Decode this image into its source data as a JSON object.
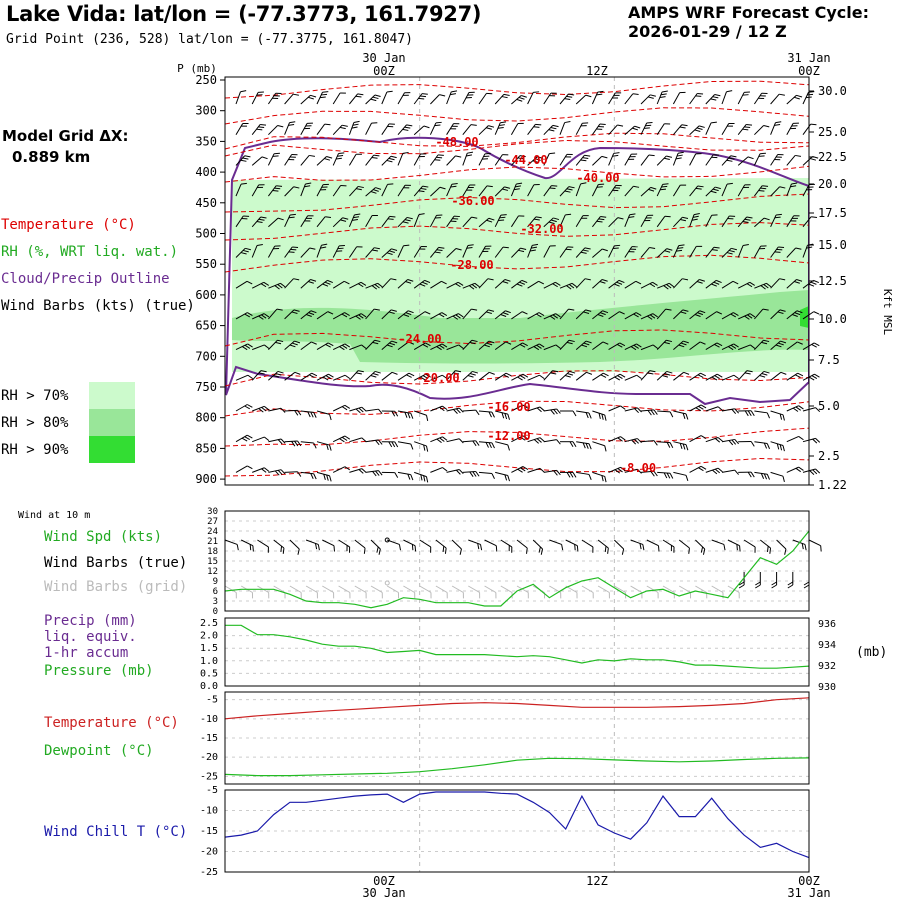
{
  "header": {
    "title": "Lake Vida:  lat/lon = (-77.3773, 161.7927)",
    "grid_point": "Grid Point (236, 528) lat/lon = (-77.3775, 161.8047)",
    "cycle_label": "AMPS WRF Forecast Cycle:",
    "cycle_value": "2026-01-29 / 12  Z"
  },
  "model_grid": {
    "line1": "Model Grid ΔX:",
    "line2": "0.889 km"
  },
  "legend": {
    "temperature": "Temperature (°C)",
    "rh": "RH (%, WRT liq. wat.)",
    "cloud": "Cloud/Precip Outline",
    "wind": "Wind Barbs (kts) (true)",
    "rh70": "RH > 70%",
    "rh80": "RH > 80%",
    "rh90": "RH > 90%"
  },
  "colors": {
    "rh70": "#ccfacc",
    "rh80": "#99e699",
    "rh90": "#33dd33",
    "temperature": "#dd0000",
    "cloud": "#6a2c91",
    "green_line": "#22bb22",
    "red_line": "#cc2222",
    "blue_line": "#1a1aaa",
    "grid": "#bbbbbb"
  },
  "time_axis": {
    "top_dates": [
      "30 Jan",
      "31 Jan"
    ],
    "labels": [
      "00Z",
      "12Z",
      "00Z"
    ],
    "bottom_dates": [
      "30 Jan",
      "31 Jan"
    ]
  },
  "upper_panel": {
    "p_label": "P (mb)",
    "pressure_ticks": [
      "250",
      "300",
      "350",
      "400",
      "450",
      "500",
      "550",
      "600",
      "650",
      "700",
      "750",
      "800",
      "850",
      "900"
    ],
    "height_ticks": [
      "30.0",
      "25.0",
      "22.5",
      "20.0",
      "17.5",
      "15.0",
      "12.5",
      "10.0",
      "7.5",
      "5.0",
      "2.5",
      "1.22"
    ],
    "height_label": "Kft MSL",
    "isotherm_labels": [
      "-48.00",
      "-44.00",
      "-40.00",
      "-36.00",
      "-32.00",
      "-28.00",
      "-24.00",
      "-20.00",
      "-16.00",
      "-12.00",
      "-8.00"
    ]
  },
  "panel2": {
    "corner": "Wind at 10 m",
    "labels": [
      "Wind Spd (kts)",
      "Wind Barbs (true)",
      "Wind Barbs (grid)"
    ],
    "y_ticks": [
      "30",
      "27",
      "24",
      "21",
      "18",
      "15",
      "12",
      "9",
      "6",
      "3",
      "0"
    ]
  },
  "panel3": {
    "labels": [
      "Precip (mm)",
      "liq. equiv.",
      "1-hr accum",
      "Pressure (mb)"
    ],
    "left_ticks": [
      "2.5",
      "2.0",
      "1.5",
      "1.0",
      "0.5",
      "0.0"
    ],
    "right_ticks": [
      "936",
      "934",
      "932",
      "930"
    ],
    "right_unit": "(mb)"
  },
  "panel4": {
    "labels": [
      "Temperature (°C)",
      "Dewpoint (°C)"
    ],
    "y_ticks": [
      "-5",
      "-10",
      "-15",
      "-20",
      "-25"
    ]
  },
  "panel5": {
    "label": "Wind Chill T (°C)",
    "y_ticks": [
      "-5",
      "-10",
      "-15",
      "-20",
      "-25"
    ]
  },
  "chart_data": [
    {
      "type": "line",
      "title": "Wind at 10 m - Wind Spd (kts)",
      "x_hours": [
        0,
        1,
        2,
        3,
        4,
        5,
        6,
        7,
        8,
        9,
        10,
        11,
        12,
        13,
        14,
        15,
        16,
        17,
        18,
        19,
        20,
        21,
        22,
        23,
        24,
        25,
        26,
        27,
        28,
        29,
        30,
        31,
        32,
        33,
        34,
        35,
        36
      ],
      "ylim": [
        0,
        30
      ],
      "series": [
        {
          "name": "Wind Spd (kts)",
          "values": [
            6,
            6.5,
            6.5,
            6.5,
            5,
            3,
            2.5,
            2.5,
            2,
            1,
            2,
            4,
            3.5,
            2.5,
            2.5,
            2.5,
            1.5,
            1.5,
            6,
            8,
            4,
            7,
            9,
            10,
            7,
            4,
            6,
            6.5,
            4.5,
            6,
            5,
            4,
            10,
            16,
            14,
            18,
            24
          ]
        }
      ]
    },
    {
      "type": "line",
      "title": "Pressure (mb)",
      "x_hours": [
        0,
        1,
        2,
        3,
        4,
        5,
        6,
        7,
        8,
        9,
        10,
        11,
        12,
        13,
        14,
        15,
        16,
        17,
        18,
        19,
        20,
        21,
        22,
        23,
        24,
        25,
        26,
        27,
        28,
        29,
        30,
        31,
        32,
        33,
        34,
        35,
        36
      ],
      "ylim": [
        930,
        936.5
      ],
      "series": [
        {
          "name": "Pressure (mb)",
          "values": [
            935.8,
            935.8,
            934.9,
            934.9,
            934.7,
            934.4,
            934.0,
            933.8,
            933.8,
            933.6,
            933.2,
            933.3,
            933.4,
            933.0,
            933.0,
            933.0,
            933.0,
            932.9,
            932.8,
            932.9,
            932.8,
            932.5,
            932.2,
            932.5,
            932.4,
            932.6,
            932.5,
            932.5,
            932.3,
            932.0,
            932.0,
            931.9,
            931.8,
            931.7,
            931.7,
            931.8,
            931.9
          ]
        }
      ]
    },
    {
      "type": "line",
      "title": "Temperature and Dewpoint (°C)",
      "x_hours": [
        0,
        2,
        4,
        6,
        8,
        10,
        12,
        14,
        16,
        18,
        20,
        22,
        24,
        26,
        28,
        30,
        32,
        34,
        36
      ],
      "ylim": [
        -27,
        -3
      ],
      "series": [
        {
          "name": "Temperature (°C)",
          "values": [
            -10,
            -9.2,
            -8.6,
            -8.0,
            -7.5,
            -7.0,
            -6.5,
            -6.0,
            -5.8,
            -6.0,
            -6.5,
            -7.0,
            -7.0,
            -7.0,
            -6.8,
            -6.5,
            -6.0,
            -5.0,
            -4.5
          ]
        },
        {
          "name": "Dewpoint (°C)",
          "values": [
            -24.5,
            -24.8,
            -24.8,
            -24.6,
            -24.4,
            -24.2,
            -23.8,
            -23.0,
            -22.0,
            -20.8,
            -20.3,
            -20.4,
            -20.7,
            -21.0,
            -21.2,
            -21.0,
            -20.6,
            -20.3,
            -20.2
          ]
        }
      ]
    },
    {
      "type": "line",
      "title": "Wind Chill T (°C)",
      "x_hours": [
        0,
        1,
        2,
        3,
        4,
        5,
        6,
        7,
        8,
        9,
        10,
        11,
        12,
        13,
        14,
        15,
        16,
        17,
        18,
        19,
        20,
        21,
        22,
        23,
        24,
        25,
        26,
        27,
        28,
        29,
        30,
        31,
        32,
        33,
        34,
        35,
        36
      ],
      "ylim": [
        -25,
        -5
      ],
      "series": [
        {
          "name": "Wind Chill T (°C)",
          "values": [
            -16.5,
            -16,
            -15,
            -11,
            -8,
            -8,
            -7.5,
            -7,
            -6.5,
            -6.2,
            -6,
            -8,
            -6,
            -5.5,
            -5.5,
            -5.5,
            -5.5,
            -5.8,
            -6,
            -8,
            -10.5,
            -14.5,
            -6.5,
            -13.5,
            -15.5,
            -17,
            -13,
            -6.5,
            -11.5,
            -11.5,
            -7,
            -12,
            -16,
            -19,
            -18,
            -20,
            -21.5
          ]
        }
      ]
    }
  ]
}
